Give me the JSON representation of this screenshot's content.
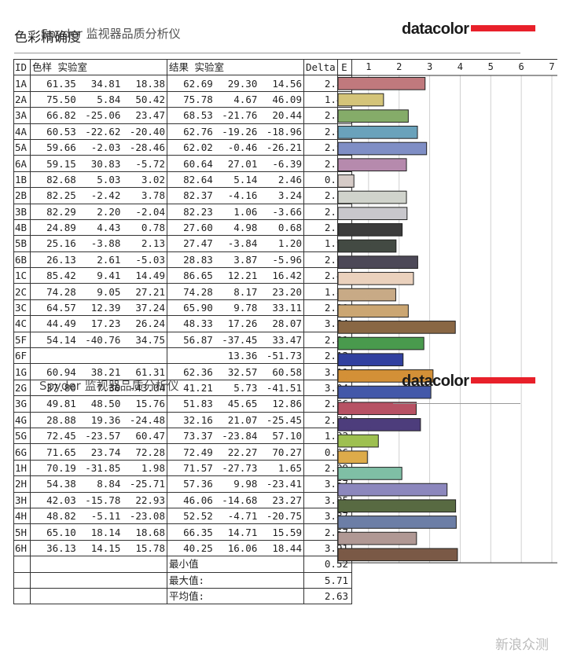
{
  "header": {
    "title": "色彩精确度",
    "subtitle": "Spyder 监视器品质分析仪",
    "logo": "datacolor"
  },
  "overlay": {
    "subtitle": "Spyder 监视器品质分析仪",
    "logo": "datacolor"
  },
  "table": {
    "headers": {
      "id": "ID",
      "ref": "色样 实验室",
      "res": "结果 实验室",
      "de": "Delta E"
    },
    "rows": [
      {
        "id": "1A",
        "ref": [
          "61.35",
          "34.81",
          "18.38"
        ],
        "res": [
          "62.69",
          "29.30",
          "14.56"
        ],
        "de": "2.85"
      },
      {
        "id": "2A",
        "ref": [
          "75.50",
          "5.84",
          "50.42"
        ],
        "res": [
          "75.78",
          "4.67",
          "46.09"
        ],
        "de": "1.49"
      },
      {
        "id": "3A",
        "ref": [
          "66.82",
          "-25.06",
          "23.47"
        ],
        "res": [
          "68.53",
          "-21.76",
          "20.44"
        ],
        "de": "2.30"
      },
      {
        "id": "4A",
        "ref": [
          "60.53",
          "-22.62",
          "-20.40"
        ],
        "res": [
          "62.76",
          "-19.26",
          "-18.96"
        ],
        "de": "2.60"
      },
      {
        "id": "5A",
        "ref": [
          "59.66",
          "-2.03",
          "-28.46"
        ],
        "res": [
          "62.02",
          "-0.46",
          "-26.21"
        ],
        "de": "2.90"
      },
      {
        "id": "6A",
        "ref": [
          "59.15",
          "30.83",
          "-5.72"
        ],
        "res": [
          "60.64",
          "27.01",
          "-6.39"
        ],
        "de": "2.24"
      },
      {
        "id": "1B",
        "ref": [
          "82.68",
          "5.03",
          "3.02"
        ],
        "res": [
          "82.64",
          "5.14",
          "2.46"
        ],
        "de": "0.52"
      },
      {
        "id": "2B",
        "ref": [
          "82.25",
          "-2.42",
          "3.78"
        ],
        "res": [
          "82.37",
          "-4.16",
          "3.24"
        ],
        "de": "2.24"
      },
      {
        "id": "3B",
        "ref": [
          "82.29",
          "2.20",
          "-2.04"
        ],
        "res": [
          "82.23",
          "1.06",
          "-3.66"
        ],
        "de": "2.26"
      },
      {
        "id": "4B",
        "ref": [
          "24.89",
          "4.43",
          "0.78"
        ],
        "res": [
          "27.60",
          "4.98",
          "0.68"
        ],
        "de": "2.10"
      },
      {
        "id": "5B",
        "ref": [
          "25.16",
          "-3.88",
          "2.13"
        ],
        "res": [
          "27.47",
          "-3.84",
          "1.20"
        ],
        "de": "1.90"
      },
      {
        "id": "6B",
        "ref": [
          "26.13",
          "2.61",
          "-5.03"
        ],
        "res": [
          "28.83",
          "3.87",
          "-5.96"
        ],
        "de": "2.61"
      },
      {
        "id": "1C",
        "ref": [
          "85.42",
          "9.41",
          "14.49"
        ],
        "res": [
          "86.65",
          "12.21",
          "16.42"
        ],
        "de": "2.47"
      },
      {
        "id": "2C",
        "ref": [
          "74.28",
          "9.05",
          "27.21"
        ],
        "res": [
          "74.28",
          "8.17",
          "23.20"
        ],
        "de": "1.89"
      },
      {
        "id": "3C",
        "ref": [
          "64.57",
          "12.39",
          "37.24"
        ],
        "res": [
          "65.90",
          "9.78",
          "33.11"
        ],
        "de": "2.30"
      },
      {
        "id": "4C",
        "ref": [
          "44.49",
          "17.23",
          "26.24"
        ],
        "res": [
          "48.33",
          "17.26",
          "28.07"
        ],
        "de": "3.84"
      },
      {
        "id": "5F",
        "ref": [
          "54.14",
          "-40.76",
          "34.75"
        ],
        "res": [
          "56.87",
          "-37.45",
          "33.47"
        ],
        "de": "2.81"
      },
      {
        "id": "6F",
        "ref": [
          "",
          "",
          ""
        ],
        "res": [
          "",
          "13.36",
          "-51.73"
        ],
        "de": "2.13"
      },
      {
        "id": "1G",
        "ref": [
          "60.94",
          "38.21",
          "61.31"
        ],
        "res": [
          "62.36",
          "32.57",
          "60.58"
        ],
        "de": "3.11"
      },
      {
        "id": "2G",
        "ref": [
          "37.80",
          "7.30",
          "-43.04"
        ],
        "res": [
          "41.21",
          "5.73",
          "-41.51"
        ],
        "de": "3.04"
      },
      {
        "id": "3G",
        "ref": [
          "49.81",
          "48.50",
          "15.76"
        ],
        "res": [
          "51.83",
          "45.65",
          "12.86"
        ],
        "de": "2.56"
      },
      {
        "id": "4G",
        "ref": [
          "28.88",
          "19.36",
          "-24.48"
        ],
        "res": [
          "32.16",
          "21.07",
          "-25.45"
        ],
        "de": "2.70"
      },
      {
        "id": "5G",
        "ref": [
          "72.45",
          "-23.57",
          "60.47"
        ],
        "res": [
          "73.37",
          "-23.84",
          "57.10"
        ],
        "de": "1.32"
      },
      {
        "id": "6G",
        "ref": [
          "71.65",
          "23.74",
          "72.28"
        ],
        "res": [
          "72.49",
          "22.27",
          "70.27"
        ],
        "de": "0.96"
      },
      {
        "id": "1H",
        "ref": [
          "70.19",
          "-31.85",
          "1.98"
        ],
        "res": [
          "71.57",
          "-27.73",
          "1.65"
        ],
        "de": "2.09"
      },
      {
        "id": "2H",
        "ref": [
          "54.38",
          "8.84",
          "-25.71"
        ],
        "res": [
          "57.36",
          "9.98",
          "-23.41"
        ],
        "de": "3.57"
      },
      {
        "id": "3H",
        "ref": [
          "42.03",
          "-15.78",
          "22.93"
        ],
        "res": [
          "46.06",
          "-14.68",
          "23.27"
        ],
        "de": "3.85"
      },
      {
        "id": "4H",
        "ref": [
          "48.82",
          "-5.11",
          "-23.08"
        ],
        "res": [
          "52.52",
          "-4.71",
          "-20.75"
        ],
        "de": "3.87"
      },
      {
        "id": "5H",
        "ref": [
          "65.10",
          "18.14",
          "18.68"
        ],
        "res": [
          "66.35",
          "14.71",
          "15.59"
        ],
        "de": "2.57"
      },
      {
        "id": "6H",
        "ref": [
          "36.13",
          "14.15",
          "15.78"
        ],
        "res": [
          "40.25",
          "16.06",
          "18.44"
        ],
        "de": "3.91"
      }
    ],
    "summary": [
      {
        "label": "最小值",
        "value": "0.52"
      },
      {
        "label": "最大值:",
        "value": "5.71"
      },
      {
        "label": "平均值:",
        "value": "2.63"
      }
    ]
  },
  "chart_data": {
    "type": "bar",
    "orientation": "horizontal",
    "categories": [
      "1A",
      "2A",
      "3A",
      "4A",
      "5A",
      "6A",
      "1B",
      "2B",
      "3B",
      "4B",
      "5B",
      "6B",
      "1C",
      "2C",
      "3C",
      "4C",
      "5F",
      "6F",
      "1G",
      "2G",
      "3G",
      "4G",
      "5G",
      "6G",
      "1H",
      "2H",
      "3H",
      "4H",
      "5H",
      "6H"
    ],
    "values": [
      2.85,
      1.49,
      2.3,
      2.6,
      2.9,
      2.24,
      0.52,
      2.24,
      2.26,
      2.1,
      1.9,
      2.61,
      2.47,
      1.89,
      2.3,
      3.84,
      2.81,
      2.13,
      3.11,
      3.04,
      2.56,
      2.7,
      1.32,
      0.96,
      2.09,
      3.57,
      3.85,
      3.87,
      2.57,
      3.91
    ],
    "colors": [
      "#c07a7e",
      "#d4c47a",
      "#86ac6a",
      "#6aa2bc",
      "#7f8fc6",
      "#b58aad",
      "#d6cbc6",
      "#cfd3cb",
      "#c8c8cc",
      "#3b3b3b",
      "#434a44",
      "#4d4858",
      "#ead1bd",
      "#c8aa86",
      "#cba673",
      "#8a6744",
      "#4a9a4e",
      "#313f9e",
      "#d49036",
      "#4458a9",
      "#b65263",
      "#4d3d7c",
      "#9dc050",
      "#deab4a",
      "#7fbfa6",
      "#8c88bd",
      "#586a42",
      "#6c7ea6",
      "#b09994",
      "#7a5a46"
    ],
    "xlim": [
      0,
      7
    ],
    "xticks": [
      "1",
      "2",
      "3",
      "4",
      "5",
      "6",
      "7"
    ],
    "grid": true
  },
  "watermark": "新浪众测"
}
